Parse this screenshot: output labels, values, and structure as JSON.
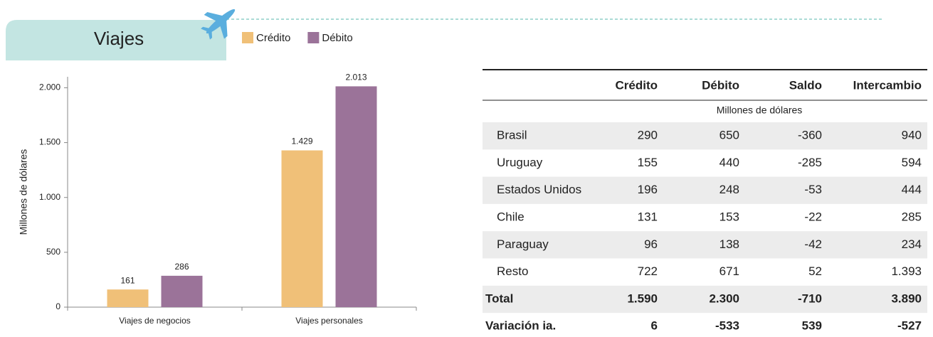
{
  "header": {
    "title": "Viajes"
  },
  "chart_data": {
    "type": "bar",
    "y_label": "Millones de dólares",
    "categories": [
      "Viajes de negocios",
      "Viajes personales"
    ],
    "series": [
      {
        "name": "Crédito",
        "color": "#f0c078",
        "values": [
          161,
          1429
        ],
        "value_labels": [
          "161",
          "1.429"
        ]
      },
      {
        "name": "Débito",
        "color": "#9b7399",
        "values": [
          286,
          2013
        ],
        "value_labels": [
          "286",
          "2.013"
        ]
      }
    ],
    "ylim": [
      0,
      2100
    ],
    "yticks": [
      0,
      500,
      {
        "value": 1000,
        "label": "1.000"
      },
      {
        "value": 1500,
        "label": "1.500"
      },
      {
        "value": 2000,
        "label": "2.000"
      }
    ]
  },
  "table": {
    "columns": [
      "Crédito",
      "Débito",
      "Saldo",
      "Intercambio"
    ],
    "unit": "Millones de dólares",
    "rows": [
      {
        "label": "Brasil",
        "cells": [
          "290",
          "650",
          "-360",
          "940"
        ]
      },
      {
        "label": "Uruguay",
        "cells": [
          "155",
          "440",
          "-285",
          "594"
        ]
      },
      {
        "label": "Estados Unidos",
        "cells": [
          "196",
          "248",
          "-53",
          "444"
        ]
      },
      {
        "label": "Chile",
        "cells": [
          "131",
          "153",
          "-22",
          "285"
        ]
      },
      {
        "label": "Paraguay",
        "cells": [
          "96",
          "138",
          "-42",
          "234"
        ]
      },
      {
        "label": "Resto",
        "cells": [
          "722",
          "671",
          "52",
          "1.393"
        ]
      }
    ],
    "total_rows": [
      {
        "label": "Total",
        "cells": [
          "1.590",
          "2.300",
          "-710",
          "3.890"
        ]
      },
      {
        "label": "Variación ia.",
        "cells": [
          "6",
          "-533",
          "539",
          "-527"
        ]
      }
    ]
  }
}
